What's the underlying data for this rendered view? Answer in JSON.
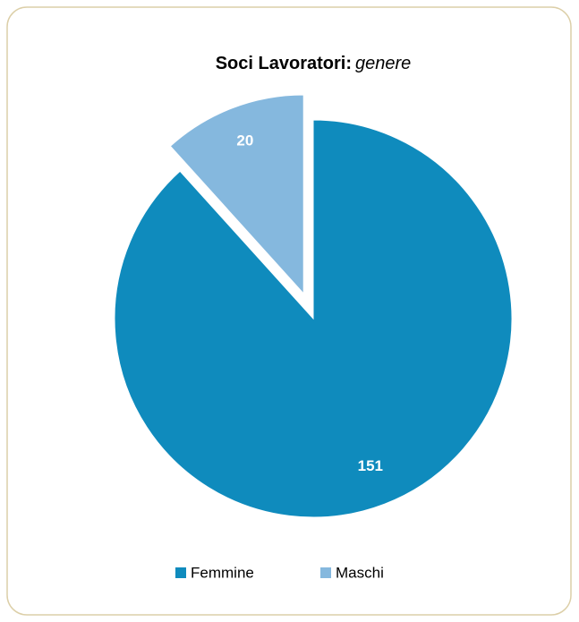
{
  "chart_data": {
    "type": "pie",
    "title": "Soci Lavoratori:",
    "title_emphasis": "genere",
    "categories": [
      "Femmine",
      "Maschi"
    ],
    "values": [
      151,
      20
    ],
    "colors": [
      "#0f8bbd",
      "#85b8de"
    ],
    "exploded": [
      false,
      true
    ],
    "legend": "bottom"
  }
}
